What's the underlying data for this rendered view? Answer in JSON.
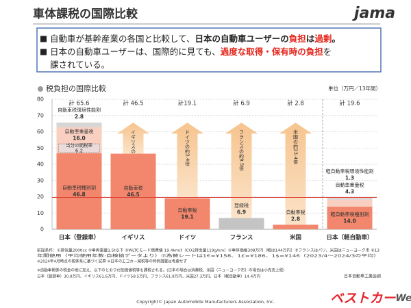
{
  "header": {
    "title": "車体課税の国際比較",
    "logo": "jama"
  },
  "message": {
    "bullets": [
      {
        "lines": [
          [
            {
              "text": "自動車が基幹産業の各国と比較して、",
              "style": "normal"
            },
            {
              "text": "日本の自動車ユーザーの",
              "style": "bold"
            },
            {
              "text": "負担",
              "style": "red"
            },
            {
              "text": "は",
              "style": "bold"
            },
            {
              "text": "過剰",
              "style": "red"
            },
            {
              "text": "。",
              "style": "bold"
            }
          ]
        ]
      },
      {
        "lines": [
          [
            {
              "text": "日本の自動車ユーザーは、国際的に見ても、",
              "style": "normal"
            },
            {
              "text": "過度な取得・保有時の負担",
              "style": "red"
            },
            {
              "text": "を",
              "style": "normal"
            }
          ],
          [
            {
              "text": "課されている。",
              "style": "normal"
            }
          ]
        ]
      }
    ]
  },
  "chart_data": {
    "type": "bar",
    "stacked": true,
    "title": "税負担の国際比較",
    "unit": "単位（万円／13年間）",
    "ylim": [
      0,
      80
    ],
    "yticks": [
      0,
      10,
      20,
      30,
      40,
      50,
      60,
      70,
      80
    ],
    "grid": true,
    "reference_line": 19.6,
    "bars": [
      {
        "category": "日本（登録車）",
        "total": 65.6,
        "total_label": "計 65.6",
        "segments": [
          {
            "name": "自動車税種別割",
            "value": 46.8,
            "color": "#f2876d"
          },
          {
            "name": "自動車重量税",
            "value": 16.0,
            "value_label": "16.0",
            "color": "#f9cfc2",
            "part": {
              "name": "当分の間税率",
              "value": 6.2
            }
          },
          {
            "name": "自動車税環境性能割",
            "value": 2.8,
            "color": "#d6d6d6"
          }
        ]
      },
      {
        "category": "イギリス",
        "total": 46.5,
        "total_label": "計 46.5",
        "ratio_label": "イギリスの約1.4倍",
        "segments": [
          {
            "name": "自動車税",
            "value": 46.5,
            "color": "#f2876d"
          }
        ]
      },
      {
        "category": "ドイツ",
        "total": 19.1,
        "total_label": "計19.1",
        "ratio_label": "ドイツの約3.4倍",
        "segments": [
          {
            "name": "自動車税",
            "value": 19.1,
            "color": "#f2876d"
          }
        ]
      },
      {
        "category": "フランス",
        "total": 6.9,
        "total_label": "計 6.9",
        "ratio_label": "フランスの約9.5倍",
        "segments": [
          {
            "name": "登録税",
            "value": 6.9,
            "color": "#c4c4c4"
          }
        ]
      },
      {
        "category": "米国",
        "total": 2.8,
        "total_label": "計 2.8",
        "ratio_label": "米国の約23.4倍",
        "segments": [
          {
            "name": "自動車税",
            "value": 2.8,
            "color": "#f2876d"
          }
        ]
      },
      {
        "category": "日本（軽自動車）",
        "total": 19.6,
        "total_label": "計 19.6",
        "segments": [
          {
            "name": "軽自動車税種別割",
            "value": 14.0,
            "value_label": "14.0",
            "color": "#f2876d"
          },
          {
            "name": "自動車重量税",
            "value": 4.3,
            "color": "#f9cfc2"
          },
          {
            "name": "軽自動車税環境性能割",
            "value": 1.3,
            "color": "#d6d6d6"
          }
        ]
      }
    ]
  },
  "notes": [
    "前提条件：①排気量2000cc ②車両重量1.5t以下 ③WLTCモード燃費値 19.4km/ℓ（CO2排出量119g/km）④車体価格308万円（軽は144万円）⑤フランスはパリ、米国はニューヨーク市 ⑥13",
    "年間使用（平均使用年数:自検協データより）⑦為替レートは1€=¥158、1£=¥186、1$=¥146（2023/4～2024/3の平均）",
    "※2024年4月時点の税体系に基づく試算 ※日本のエコカー減税等の特例措置は考慮せず",
    "※自動車関係の税金の他に加え、以下のとおり付加価値税等も課税される。(日本の場合は消費税、米国（ニューヨーク市）の場合は小売売上税)",
    "日本（登録車）30.8万円、イギリス61.6万円、ドイツ58.5万円、フランス61.8万円、米国27.3万円、日本（軽自動車）14.4万円"
  ],
  "source": "日本自動車工業会調",
  "copyright": "Copyright© Japan Automobile Manufacturers Association, Inc.",
  "watermark": {
    "main": "ベストカー",
    "suffix": "Web"
  }
}
